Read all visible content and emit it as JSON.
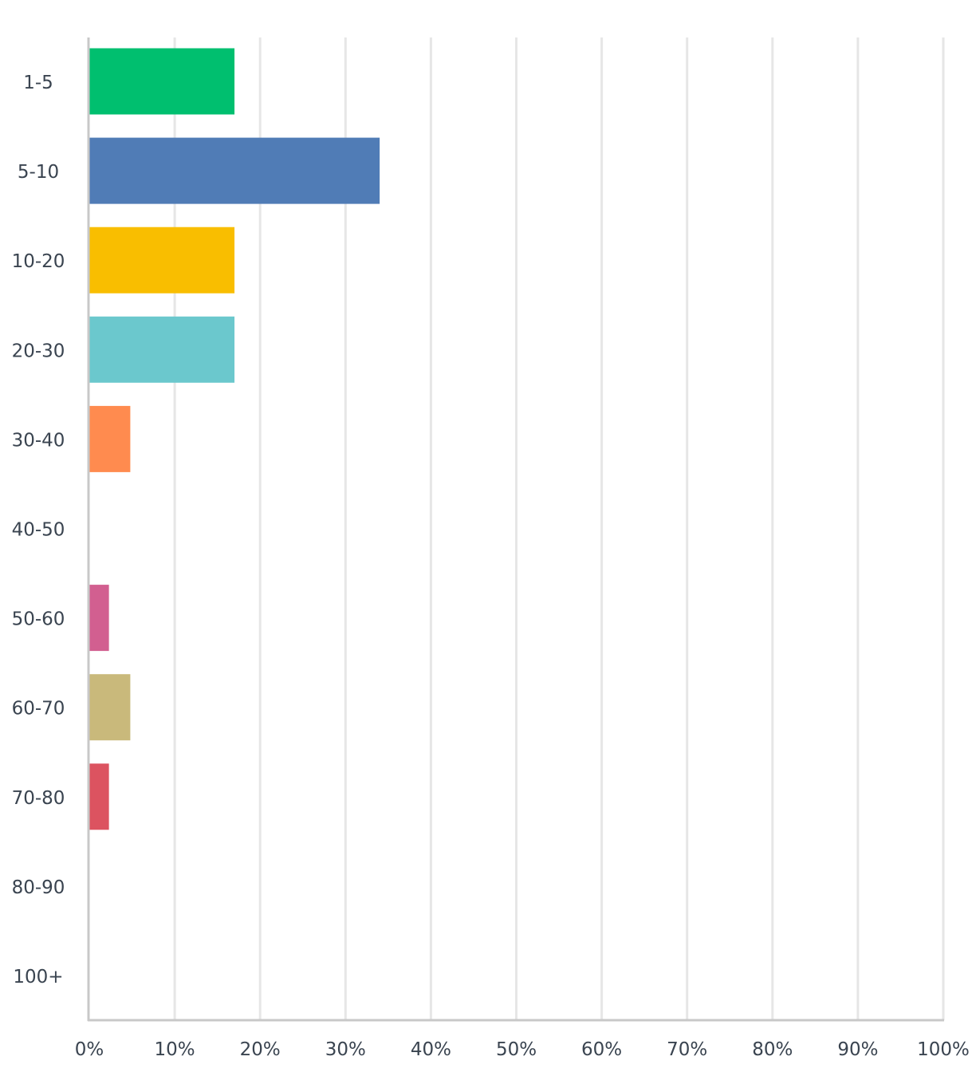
{
  "chart_data": {
    "type": "bar",
    "orientation": "horizontal",
    "categories": [
      "1-5",
      "5-10",
      "10-20",
      "20-30",
      "30-40",
      "40-50",
      "50-60",
      "60-70",
      "70-80",
      "80-90",
      "100+"
    ],
    "values": [
      17,
      34,
      17,
      17,
      4.8,
      0,
      2.3,
      4.8,
      2.3,
      0,
      0
    ],
    "colors": [
      "#00bf6f",
      "#507cb6",
      "#f9be00",
      "#6bc8cd",
      "#ff8b4f",
      "#7f7fff",
      "#d25f90",
      "#c9b97b",
      "#dc5360",
      "#88aa55",
      "#9999bb"
    ],
    "xlim": [
      0,
      100
    ],
    "xticks": [
      "0%",
      "10%",
      "20%",
      "30%",
      "40%",
      "50%",
      "60%",
      "70%",
      "80%",
      "90%",
      "100%"
    ],
    "grid": true,
    "legend": "none"
  }
}
